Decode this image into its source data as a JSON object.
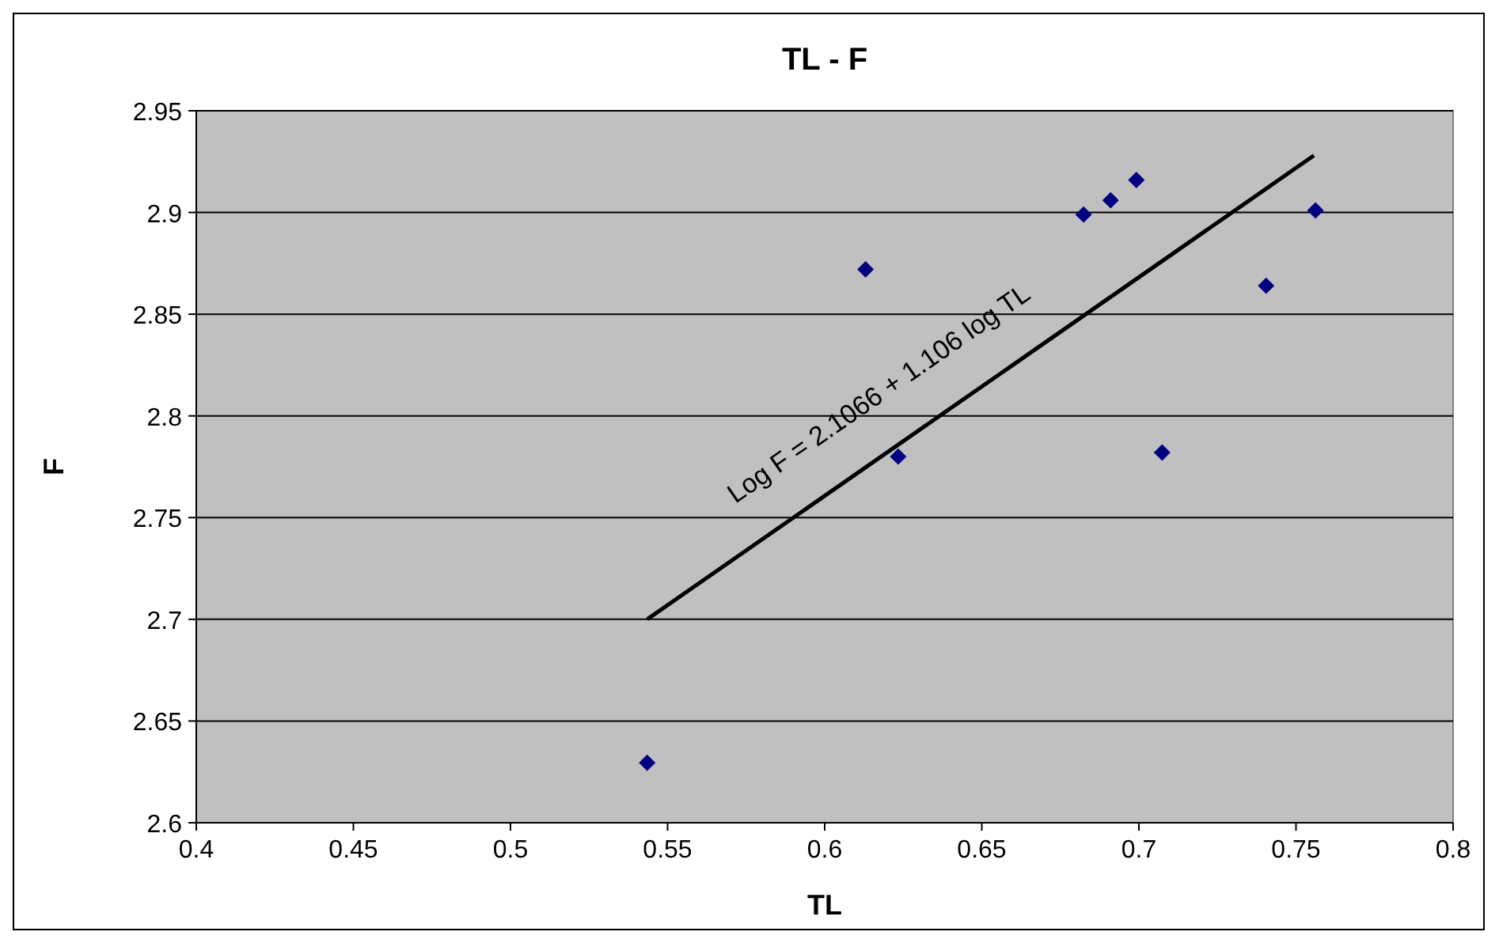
{
  "chart_data": {
    "type": "scatter",
    "title": "TL - F",
    "xlabel": "TL",
    "ylabel": "F",
    "xlim": [
      0.4,
      0.8
    ],
    "xticks": [
      0.4,
      0.45,
      0.5,
      0.55,
      0.6,
      0.65,
      0.7,
      0.75,
      0.8
    ],
    "ylim": [
      2.6,
      2.95
    ],
    "yticks": [
      2.6,
      2.65,
      2.7,
      2.75,
      2.8,
      2.85,
      2.9,
      2.95
    ],
    "grid": "y",
    "series": [
      {
        "marker": "diamond",
        "color": "#000080",
        "x": [
          0.5435,
          0.613,
          0.6234,
          0.6824,
          0.691,
          0.6992,
          0.7074,
          0.7405,
          0.7562
        ],
        "values": [
          2.6295,
          2.872,
          2.78,
          2.899,
          2.906,
          2.916,
          2.782,
          2.864,
          2.901
        ]
      },
      {
        "type": "line",
        "color": "#000000",
        "x": [
          0.5435,
          0.7557
        ],
        "values": [
          2.7,
          2.928
        ],
        "line_style": "solid"
      }
    ],
    "annotations": [
      "Log F = 2.1066 + 1.106 log TL"
    ]
  }
}
